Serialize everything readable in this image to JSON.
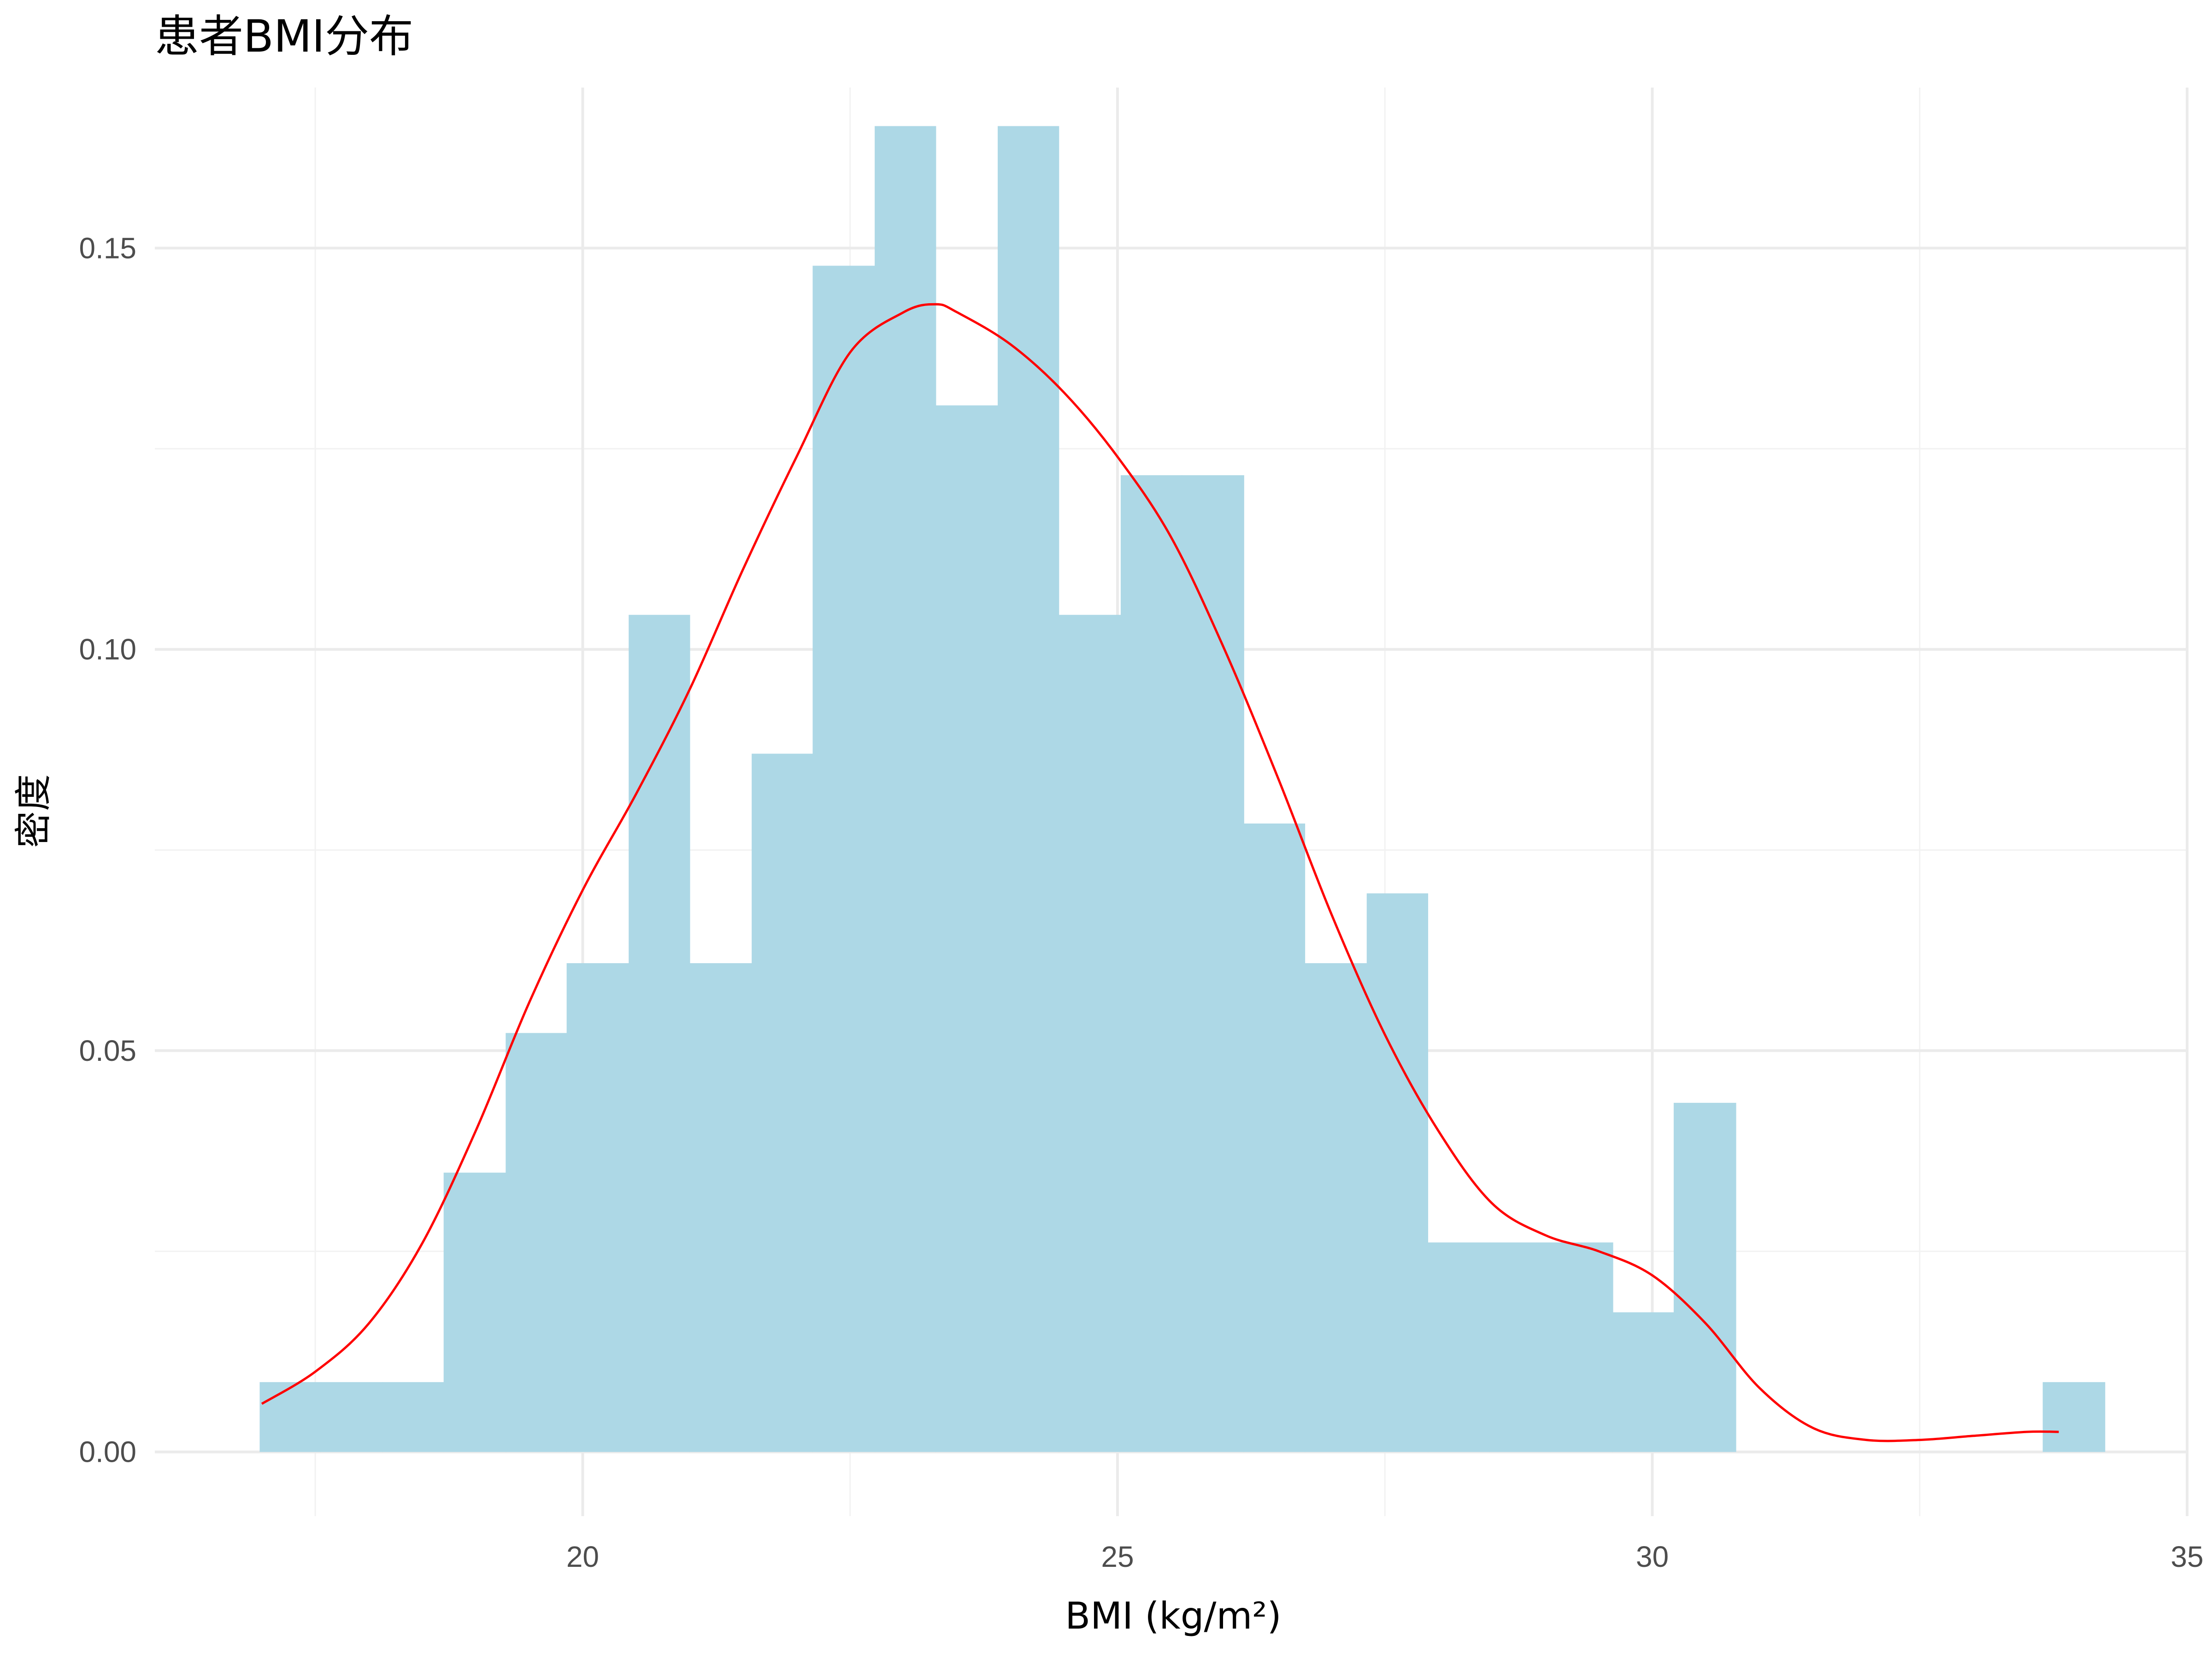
{
  "chart_data": {
    "type": "bar",
    "title": "患者BMI分布",
    "xlabel": "BMI (kg/m²)",
    "ylabel": "密度",
    "xlim": [
      16.0,
      35.0
    ],
    "ylim": [
      -0.008,
      0.17
    ],
    "x_ticks": [
      20,
      25,
      30,
      35
    ],
    "x_tick_labels": [
      "20",
      "25",
      "30",
      "35"
    ],
    "y_ticks": [
      0.0,
      0.05,
      0.1,
      0.15
    ],
    "y_tick_labels": [
      "0.00",
      "0.05",
      "0.10",
      "0.15"
    ],
    "grid": true,
    "bar_color": "#add8e6",
    "density_color": "#ff0000",
    "histogram": {
      "bin_edges": [
        16.98,
        17.55,
        18.13,
        18.7,
        19.28,
        19.85,
        20.43,
        21.0,
        21.58,
        22.15,
        22.73,
        23.3,
        23.88,
        24.45,
        25.03,
        25.6,
        26.18,
        26.75,
        27.33,
        27.9,
        28.48,
        29.05,
        29.63,
        30.2,
        30.78,
        31.35,
        31.93,
        32.5,
        33.08,
        33.65,
        34.23
      ],
      "density": [
        0.0087,
        0.0087,
        0.0087,
        0.0348,
        0.0522,
        0.0609,
        0.1043,
        0.0609,
        0.087,
        0.1478,
        0.1652,
        0.1304,
        0.1652,
        0.1043,
        0.1217,
        0.1217,
        0.0783,
        0.0609,
        0.0696,
        0.0261,
        0.0261,
        0.0261,
        0.0174,
        0.0435,
        0,
        0,
        0,
        0,
        0,
        0.0087
      ]
    },
    "density_curve": {
      "x": [
        17.0,
        17.5,
        18.0,
        18.5,
        19.0,
        19.5,
        20.0,
        20.5,
        21.0,
        21.5,
        22.0,
        22.5,
        23.0,
        23.3,
        23.5,
        24.0,
        24.5,
        25.0,
        25.5,
        26.0,
        26.5,
        27.0,
        27.5,
        28.0,
        28.5,
        29.0,
        29.5,
        30.0,
        30.5,
        31.0,
        31.5,
        32.0,
        32.5,
        33.0,
        33.5,
        33.8
      ],
      "y": [
        0.006,
        0.01,
        0.016,
        0.026,
        0.04,
        0.056,
        0.07,
        0.082,
        0.095,
        0.11,
        0.124,
        0.137,
        0.142,
        0.143,
        0.142,
        0.138,
        0.132,
        0.124,
        0.114,
        0.1,
        0.084,
        0.067,
        0.052,
        0.04,
        0.031,
        0.027,
        0.025,
        0.022,
        0.016,
        0.008,
        0.003,
        0.0015,
        0.0015,
        0.002,
        0.0025,
        0.0025
      ]
    }
  }
}
